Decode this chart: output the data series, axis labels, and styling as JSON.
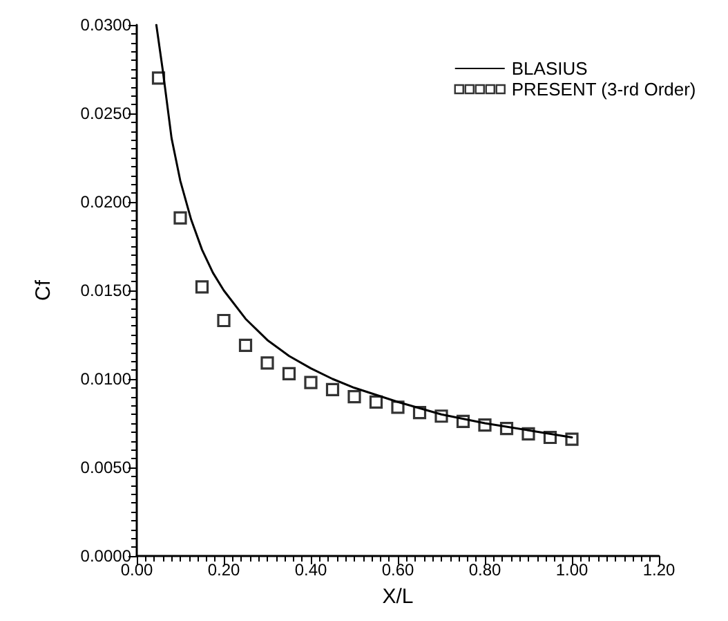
{
  "chart_data": {
    "type": "line",
    "xlabel": "X/L",
    "ylabel": "Cf",
    "xlim": [
      0,
      1.2
    ],
    "ylim": [
      0,
      0.03
    ],
    "xticks": [
      {
        "value": 0,
        "label": "0.00"
      },
      {
        "value": 0.2,
        "label": "0.20"
      },
      {
        "value": 0.4,
        "label": "0.40"
      },
      {
        "value": 0.6,
        "label": "0.60"
      },
      {
        "value": 0.8,
        "label": "0.80"
      },
      {
        "value": 1.0,
        "label": "1.00"
      },
      {
        "value": 1.2,
        "label": "1.20"
      }
    ],
    "yticks": [
      {
        "value": 0,
        "label": "0.0000"
      },
      {
        "value": 0.005,
        "label": "0.0050"
      },
      {
        "value": 0.01,
        "label": "0.0100"
      },
      {
        "value": 0.015,
        "label": "0.0150"
      },
      {
        "value": 0.02,
        "label": "0.0200"
      },
      {
        "value": 0.025,
        "label": "0.0250"
      },
      {
        "value": 0.03,
        "label": "0.0300"
      }
    ],
    "legend": "top right",
    "grid": false,
    "series": [
      {
        "name": "BLASIUS",
        "type": "line",
        "color": "#000000",
        "marker": "none",
        "line_style": "solid",
        "x": [
          0.045,
          0.06,
          0.08,
          0.1,
          0.125,
          0.15,
          0.175,
          0.2,
          0.25,
          0.3,
          0.35,
          0.4,
          0.45,
          0.5,
          0.6,
          0.7,
          0.8,
          0.9,
          1.0
        ],
        "values": [
          0.03,
          0.0274,
          0.0236,
          0.0212,
          0.019,
          0.0173,
          0.016,
          0.015,
          0.0134,
          0.0122,
          0.0113,
          0.0106,
          0.01,
          0.0095,
          0.0087,
          0.008,
          0.0075,
          0.0071,
          0.0067
        ]
      },
      {
        "name": "PRESENT (3-rd Order)",
        "type": "scatter",
        "color": "#000000",
        "marker": "square",
        "x": [
          0.05,
          0.1,
          0.15,
          0.2,
          0.25,
          0.3,
          0.35,
          0.4,
          0.45,
          0.5,
          0.55,
          0.6,
          0.65,
          0.7,
          0.75,
          0.8,
          0.85,
          0.9,
          0.95,
          1.0
        ],
        "values": [
          0.027,
          0.0191,
          0.0152,
          0.0133,
          0.0119,
          0.0109,
          0.0103,
          0.0098,
          0.0094,
          0.009,
          0.0087,
          0.0084,
          0.0081,
          0.0079,
          0.0076,
          0.0074,
          0.0072,
          0.0069,
          0.0067,
          0.0066
        ]
      }
    ]
  }
}
